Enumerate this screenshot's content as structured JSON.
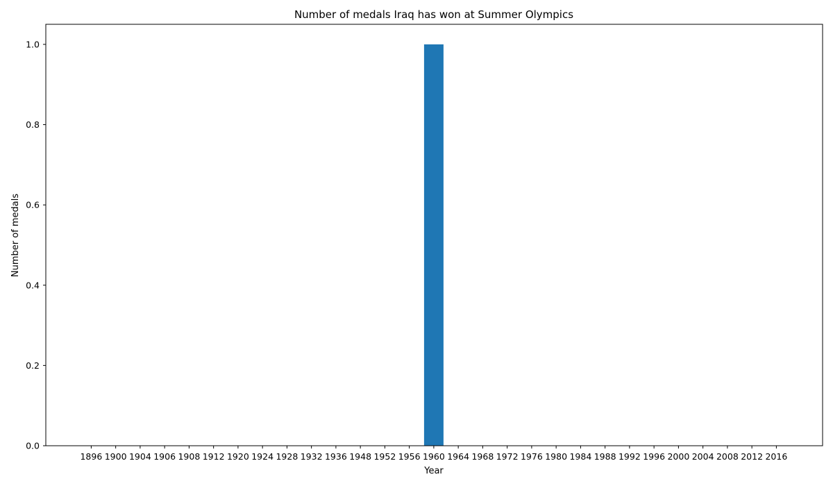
{
  "chart_data": {
    "type": "bar",
    "title": "Number of medals Iraq has won at Summer Olympics",
    "xlabel": "Year",
    "ylabel": "Number of medals",
    "categories": [
      "1896",
      "1900",
      "1904",
      "1906",
      "1908",
      "1912",
      "1920",
      "1924",
      "1928",
      "1932",
      "1936",
      "1948",
      "1952",
      "1956",
      "1960",
      "1964",
      "1968",
      "1972",
      "1976",
      "1980",
      "1984",
      "1988",
      "1992",
      "1996",
      "2000",
      "2004",
      "2008",
      "2012",
      "2016"
    ],
    "values": [
      0,
      0,
      0,
      0,
      0,
      0,
      0,
      0,
      0,
      0,
      0,
      0,
      0,
      0,
      1,
      0,
      0,
      0,
      0,
      0,
      0,
      0,
      0,
      0,
      0,
      0,
      0,
      0,
      0
    ],
    "ylim": [
      0,
      1.05
    ],
    "yticks": [
      "0.0",
      "0.2",
      "0.4",
      "0.6",
      "0.8",
      "1.0"
    ],
    "bar_color": "#1f77b4",
    "grid": false,
    "legend": "none"
  }
}
